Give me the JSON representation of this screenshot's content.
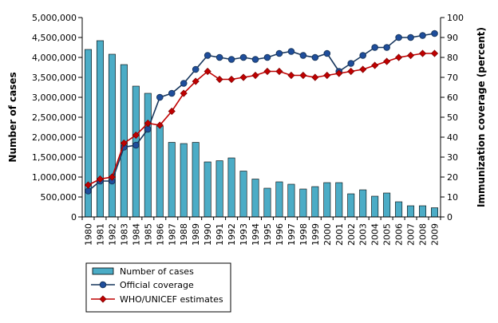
{
  "chart_data": {
    "type": "bar+line",
    "title": "",
    "ylabel_left": "Number of cases",
    "ylabel_right": "Immunization coverage (percent)",
    "xlabel": "",
    "left_axis": {
      "ylim": [
        0,
        5000000
      ],
      "ticks": [
        0,
        500000,
        1000000,
        1500000,
        2000000,
        2500000,
        3000000,
        3500000,
        4000000,
        4500000,
        5000000
      ],
      "tick_labels": [
        "0",
        "500,000",
        "1,000,000",
        "1,500,000",
        "2,000,000",
        "2,500,000",
        "3,000,000",
        "3,500,000",
        "4,000,000",
        "4,500,000",
        "5,000,000"
      ]
    },
    "right_axis": {
      "ylim": [
        0,
        100
      ],
      "ticks": [
        0,
        10,
        20,
        30,
        40,
        50,
        60,
        70,
        80,
        90,
        100
      ],
      "tick_labels": [
        "0",
        "10",
        "20",
        "30",
        "40",
        "50",
        "60",
        "70",
        "80",
        "90",
        "100"
      ]
    },
    "categories": [
      "1980",
      "1981",
      "1982",
      "1983",
      "1984",
      "1985",
      "1986",
      "1987",
      "1988",
      "1989",
      "1990",
      "1991",
      "1992",
      "1993",
      "1994",
      "1995",
      "1996",
      "1997",
      "1998",
      "1999",
      "2000",
      "2001",
      "2002",
      "2003",
      "2004",
      "2005",
      "2006",
      "2007",
      "2008",
      "2009"
    ],
    "series": [
      {
        "name": "Number of cases",
        "type": "bar",
        "axis": "left",
        "color": "#4bacc6",
        "values": [
          4200000,
          4420000,
          4080000,
          3820000,
          3280000,
          3100000,
          2280000,
          1870000,
          1840000,
          1870000,
          1380000,
          1410000,
          1480000,
          1150000,
          950000,
          720000,
          880000,
          820000,
          700000,
          760000,
          860000,
          860000,
          580000,
          680000,
          520000,
          600000,
          380000,
          280000,
          280000,
          230000
        ]
      },
      {
        "name": "Official coverage",
        "type": "line",
        "axis": "right",
        "marker": "circle",
        "color": "#17365d",
        "values": [
          13,
          18,
          18,
          35,
          36,
          44,
          60,
          62,
          67,
          74,
          81,
          80,
          79,
          80,
          79,
          80,
          82,
          83,
          81,
          80,
          82,
          73,
          77,
          81,
          85,
          85,
          90,
          90,
          91,
          92
        ]
      },
      {
        "name": "WHO/UNICEF estimates",
        "type": "line",
        "axis": "right",
        "marker": "diamond",
        "color": "#c00000",
        "values": [
          16,
          19,
          20,
          37,
          41,
          47,
          46,
          53,
          62,
          68,
          73,
          69,
          69,
          70,
          71,
          73,
          73,
          71,
          71,
          70,
          71,
          72,
          73,
          74,
          76,
          78,
          80,
          81,
          82,
          82
        ]
      }
    ],
    "legend": {
      "placement": "bottom-left",
      "entries": [
        "Number of cases",
        "Official coverage",
        "WHO/UNICEF estimates"
      ]
    },
    "grid": false
  }
}
